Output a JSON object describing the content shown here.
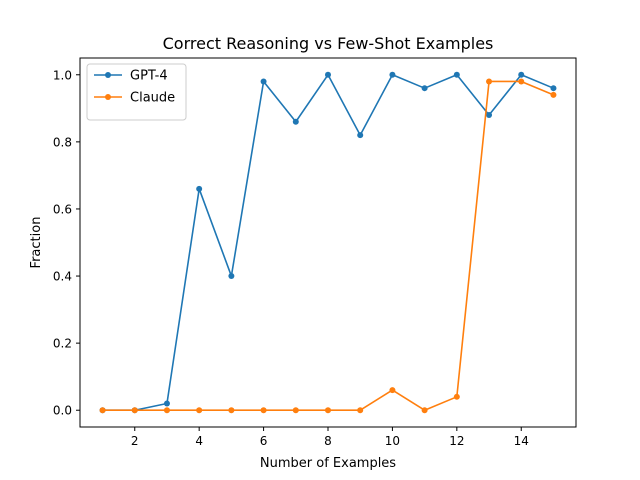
{
  "chart_data": {
    "type": "line",
    "title": "Correct Reasoning vs Few-Shot Examples",
    "xlabel": "Number of Examples",
    "ylabel": "Fraction",
    "xlim": [
      0.3,
      15.7
    ],
    "ylim": [
      -0.05,
      1.05
    ],
    "x_ticks": [
      2,
      4,
      6,
      8,
      10,
      12,
      14
    ],
    "y_ticks": [
      0.0,
      0.2,
      0.4,
      0.6,
      0.8,
      1.0
    ],
    "y_tick_labels": [
      "0.0",
      "0.2",
      "0.4",
      "0.6",
      "0.8",
      "1.0"
    ],
    "x": [
      1,
      2,
      3,
      4,
      5,
      6,
      7,
      8,
      9,
      10,
      11,
      12,
      13,
      14,
      15
    ],
    "series": [
      {
        "name": "GPT-4",
        "color": "#1f77b4",
        "values": [
          0.0,
          0.0,
          0.02,
          0.66,
          0.4,
          0.98,
          0.86,
          1.0,
          0.82,
          1.0,
          0.96,
          1.0,
          0.88,
          1.0,
          0.96
        ]
      },
      {
        "name": "Claude",
        "color": "#ff7f0e",
        "values": [
          0.0,
          0.0,
          0.0,
          0.0,
          0.0,
          0.0,
          0.0,
          0.0,
          0.0,
          0.06,
          0.0,
          0.04,
          0.98,
          0.98,
          0.94
        ]
      }
    ],
    "legend_position": "top-left",
    "grid": false
  }
}
